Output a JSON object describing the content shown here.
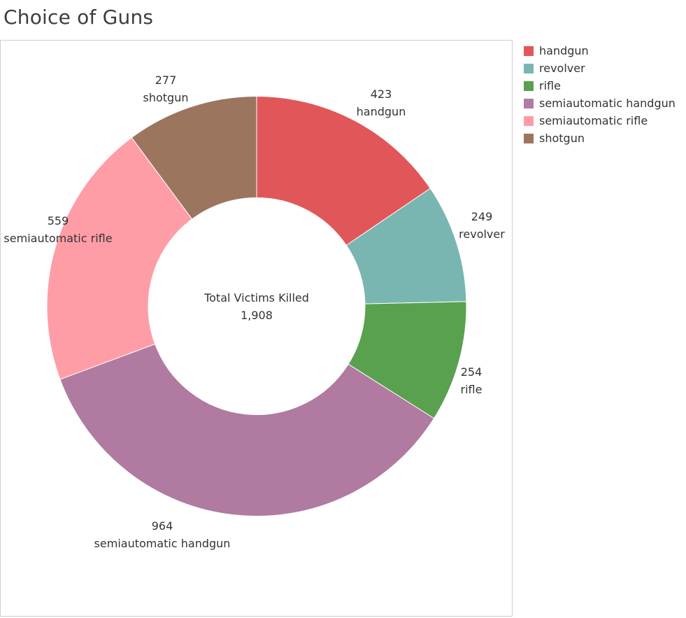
{
  "chart_data": {
    "type": "pie",
    "title": "Choice of Guns",
    "center_label": "Total Victims Killed",
    "center_value": "1,908",
    "legend_position": "right",
    "slices": [
      {
        "name": "handgun",
        "value": 423,
        "value_label": "423",
        "color": "#e15759"
      },
      {
        "name": "revolver",
        "value": 249,
        "value_label": "249",
        "color": "#79b6b1"
      },
      {
        "name": "rifle",
        "value": 254,
        "value_label": "254",
        "color": "#59a14f"
      },
      {
        "name": "semiautomatic handgun",
        "value": 964,
        "value_label": "964",
        "color": "#b07aa1"
      },
      {
        "name": "semiautomatic rifle",
        "value": 559,
        "value_label": "559",
        "color": "#ff9da7"
      },
      {
        "name": "shotgun",
        "value": 277,
        "value_label": "277",
        "color": "#9c755f"
      }
    ],
    "legend": [
      {
        "name": "handgun",
        "color": "#e15759"
      },
      {
        "name": "revolver",
        "color": "#79b6b1"
      },
      {
        "name": "rifle",
        "color": "#59a14f"
      },
      {
        "name": "semiautomatic handgun",
        "color": "#b07aa1"
      },
      {
        "name": "semiautomatic rifle",
        "color": "#ff9da7"
      },
      {
        "name": "shotgun",
        "color": "#9c755f"
      }
    ]
  }
}
